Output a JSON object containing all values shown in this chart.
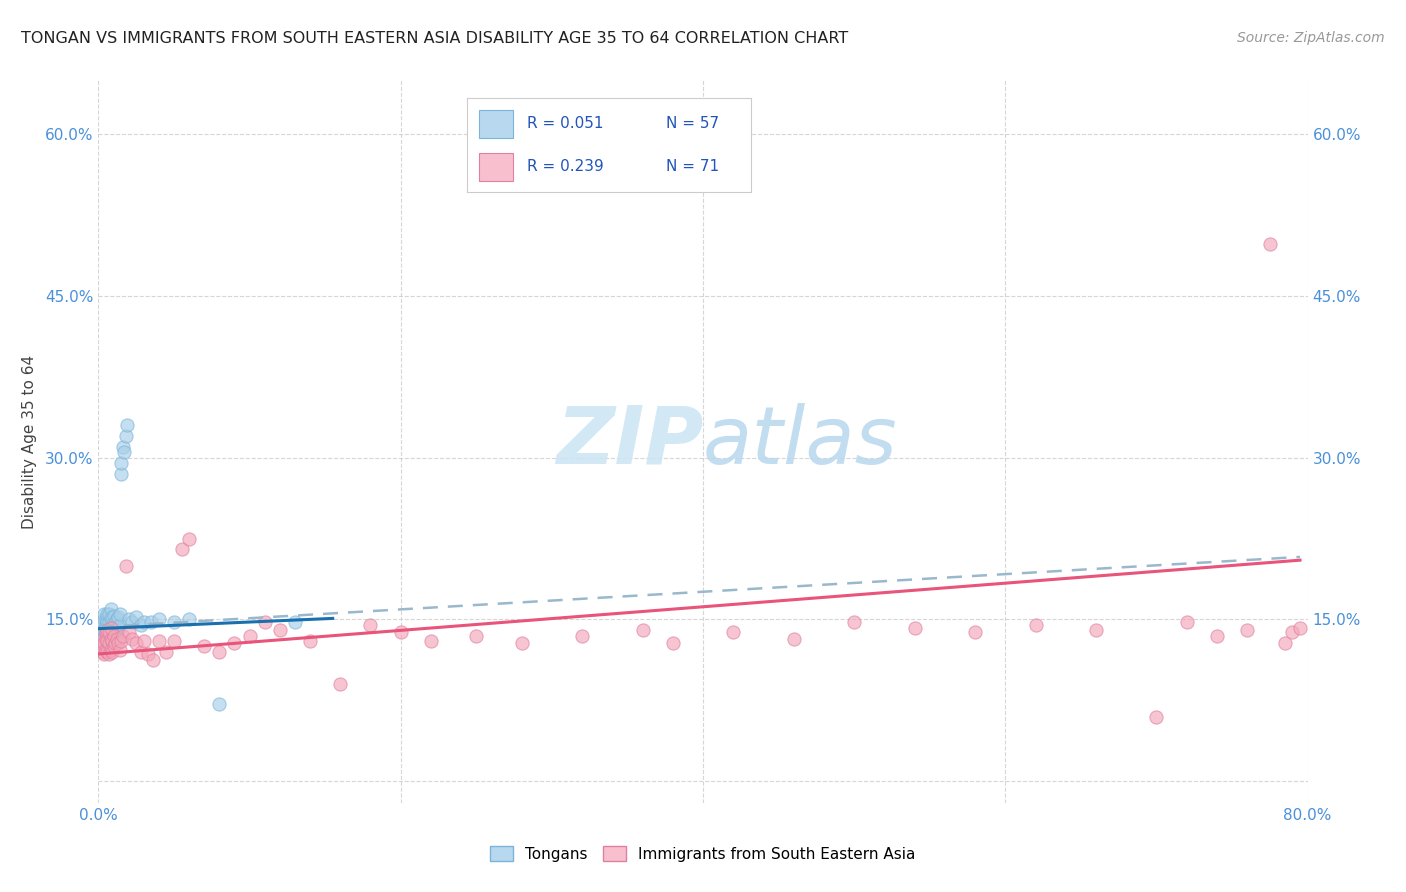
{
  "title": "TONGAN VS IMMIGRANTS FROM SOUTH EASTERN ASIA DISABILITY AGE 35 TO 64 CORRELATION CHART",
  "source": "Source: ZipAtlas.com",
  "ylabel": "Disability Age 35 to 64",
  "xlim": [
    0,
    0.8
  ],
  "ylim": [
    -0.02,
    0.65
  ],
  "yticks": [
    0.0,
    0.15,
    0.3,
    0.45,
    0.6
  ],
  "xticks": [
    0.0,
    0.2,
    0.4,
    0.6,
    0.8
  ],
  "color_blue": "#a8cfe8",
  "color_pink": "#f4a7b9",
  "line_blue": "#1a6faf",
  "line_pink": "#e8547a",
  "line_dashed_color": "#9ab8cc",
  "watermark_color": "#cce4f4",
  "background": "#ffffff",
  "grid_color": "#cccccc",
  "tongans_x": [
    0.002,
    0.003,
    0.003,
    0.003,
    0.004,
    0.004,
    0.004,
    0.004,
    0.005,
    0.005,
    0.005,
    0.005,
    0.006,
    0.006,
    0.006,
    0.006,
    0.006,
    0.007,
    0.007,
    0.007,
    0.007,
    0.007,
    0.008,
    0.008,
    0.008,
    0.008,
    0.009,
    0.009,
    0.009,
    0.01,
    0.01,
    0.01,
    0.011,
    0.011,
    0.012,
    0.012,
    0.013,
    0.013,
    0.014,
    0.014,
    0.015,
    0.015,
    0.016,
    0.017,
    0.018,
    0.019,
    0.02,
    0.022,
    0.025,
    0.028,
    0.03,
    0.035,
    0.04,
    0.05,
    0.06,
    0.08,
    0.13
  ],
  "tongans_y": [
    0.135,
    0.13,
    0.14,
    0.145,
    0.13,
    0.14,
    0.15,
    0.155,
    0.13,
    0.14,
    0.145,
    0.15,
    0.125,
    0.135,
    0.14,
    0.148,
    0.155,
    0.128,
    0.135,
    0.142,
    0.148,
    0.155,
    0.13,
    0.14,
    0.15,
    0.16,
    0.132,
    0.142,
    0.152,
    0.135,
    0.143,
    0.153,
    0.138,
    0.148,
    0.14,
    0.15,
    0.142,
    0.152,
    0.145,
    0.155,
    0.285,
    0.295,
    0.31,
    0.305,
    0.32,
    0.33,
    0.15,
    0.148,
    0.152,
    0.145,
    0.148,
    0.148,
    0.15,
    0.148,
    0.15,
    0.072,
    0.148
  ],
  "sea_x": [
    0.002,
    0.003,
    0.003,
    0.004,
    0.004,
    0.005,
    0.005,
    0.005,
    0.006,
    0.006,
    0.006,
    0.007,
    0.007,
    0.007,
    0.008,
    0.008,
    0.008,
    0.009,
    0.009,
    0.01,
    0.01,
    0.011,
    0.012,
    0.013,
    0.014,
    0.015,
    0.016,
    0.018,
    0.02,
    0.022,
    0.025,
    0.028,
    0.03,
    0.033,
    0.036,
    0.04,
    0.045,
    0.05,
    0.055,
    0.06,
    0.07,
    0.08,
    0.09,
    0.1,
    0.11,
    0.12,
    0.14,
    0.16,
    0.18,
    0.2,
    0.22,
    0.25,
    0.28,
    0.32,
    0.36,
    0.38,
    0.42,
    0.46,
    0.5,
    0.54,
    0.58,
    0.62,
    0.66,
    0.7,
    0.72,
    0.74,
    0.76,
    0.775,
    0.785,
    0.79,
    0.795
  ],
  "sea_y": [
    0.125,
    0.12,
    0.132,
    0.118,
    0.128,
    0.122,
    0.132,
    0.138,
    0.12,
    0.13,
    0.14,
    0.118,
    0.128,
    0.138,
    0.122,
    0.132,
    0.142,
    0.12,
    0.13,
    0.125,
    0.135,
    0.128,
    0.132,
    0.128,
    0.122,
    0.13,
    0.135,
    0.2,
    0.138,
    0.132,
    0.128,
    0.12,
    0.13,
    0.118,
    0.112,
    0.13,
    0.12,
    0.13,
    0.215,
    0.225,
    0.125,
    0.12,
    0.128,
    0.135,
    0.148,
    0.14,
    0.13,
    0.09,
    0.145,
    0.138,
    0.13,
    0.135,
    0.128,
    0.135,
    0.14,
    0.128,
    0.138,
    0.132,
    0.148,
    0.142,
    0.138,
    0.145,
    0.14,
    0.06,
    0.148,
    0.135,
    0.14,
    0.498,
    0.128,
    0.138,
    0.142
  ],
  "blue_line_x": [
    0.0,
    0.155
  ],
  "blue_line_y": [
    0.1415,
    0.151
  ],
  "pink_line_x": [
    0.0,
    0.795
  ],
  "pink_line_y": [
    0.118,
    0.205
  ],
  "dashed_line_x": [
    0.0,
    0.795
  ],
  "dashed_line_y": [
    0.143,
    0.208
  ]
}
